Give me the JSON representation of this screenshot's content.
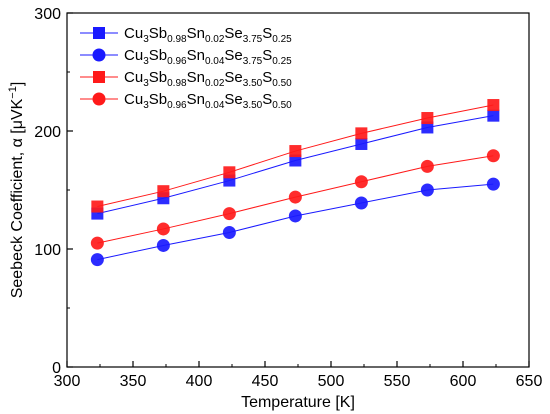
{
  "chart_data": {
    "type": "line",
    "xlabel": "Temperature [K]",
    "ylabel": {
      "main": "Seebeck Coefficient, ",
      "greek": "α",
      "unit_open": " [μVK",
      "unit_sup": "−1",
      "unit_close": "]"
    },
    "xlim": [
      300,
      650
    ],
    "ylim": [
      0,
      300
    ],
    "x_ticks": [
      300,
      350,
      400,
      450,
      500,
      550,
      600,
      650
    ],
    "y_ticks": [
      0,
      100,
      200,
      300
    ],
    "grid": false,
    "legend_position": "top-left",
    "x": [
      323,
      373,
      423,
      473,
      523,
      573,
      623
    ],
    "series": [
      {
        "label_parts": [
          [
            "Cu",
            ""
          ],
          [
            "3",
            "sub"
          ],
          [
            "Sb",
            ""
          ],
          [
            "0.98",
            "sub"
          ],
          [
            "Sn",
            ""
          ],
          [
            "0.02",
            "sub"
          ],
          [
            "Se",
            ""
          ],
          [
            "3.75",
            "sub"
          ],
          [
            "S",
            ""
          ],
          [
            "0.25",
            "sub"
          ]
        ],
        "marker": "square",
        "color": "#1a1aff",
        "values": [
          130,
          143,
          158,
          175,
          189,
          203,
          213
        ]
      },
      {
        "label_parts": [
          [
            "Cu",
            ""
          ],
          [
            "3",
            "sub"
          ],
          [
            "Sb",
            ""
          ],
          [
            "0.96",
            "sub"
          ],
          [
            "Sn",
            ""
          ],
          [
            "0.04",
            "sub"
          ],
          [
            "Se",
            ""
          ],
          [
            "3.75",
            "sub"
          ],
          [
            "S",
            ""
          ],
          [
            "0.25",
            "sub"
          ]
        ],
        "marker": "circle",
        "color": "#1a1aff",
        "values": [
          91,
          103,
          114,
          128,
          139,
          150,
          155
        ]
      },
      {
        "label_parts": [
          [
            "Cu",
            ""
          ],
          [
            "3",
            "sub"
          ],
          [
            "Sb",
            ""
          ],
          [
            "0.98",
            "sub"
          ],
          [
            "Sn",
            ""
          ],
          [
            "0.02",
            "sub"
          ],
          [
            "Se",
            ""
          ],
          [
            "3.50",
            "sub"
          ],
          [
            "S",
            ""
          ],
          [
            "0.50",
            "sub"
          ]
        ],
        "marker": "square",
        "color": "#ff1a1a",
        "values": [
          136,
          149,
          165,
          183,
          198,
          211,
          222
        ]
      },
      {
        "label_parts": [
          [
            "Cu",
            ""
          ],
          [
            "3",
            "sub"
          ],
          [
            "Sb",
            ""
          ],
          [
            "0.96",
            "sub"
          ],
          [
            "Sn",
            ""
          ],
          [
            "0.04",
            "sub"
          ],
          [
            "Se",
            ""
          ],
          [
            "3.50",
            "sub"
          ],
          [
            "S",
            ""
          ],
          [
            "0.50",
            "sub"
          ]
        ],
        "marker": "circle",
        "color": "#ff1a1a",
        "values": [
          105,
          117,
          130,
          144,
          157,
          170,
          179
        ]
      }
    ]
  }
}
